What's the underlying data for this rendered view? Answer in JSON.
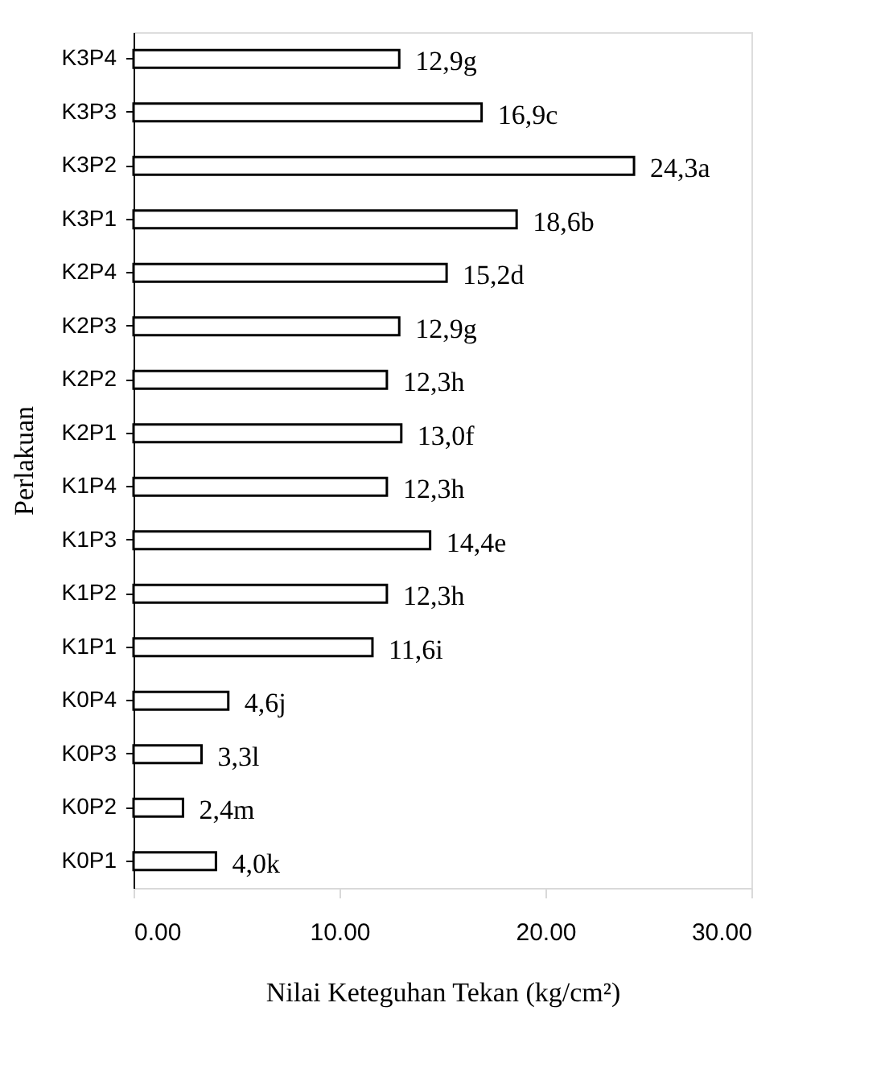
{
  "chart_data": {
    "type": "bar",
    "orientation": "horizontal",
    "xlabel": "Nilai Keteguhan Tekan (kg/cm²)",
    "ylabel": "Perlakuan",
    "categories": [
      "K3P4",
      "K3P3",
      "K3P2",
      "K3P1",
      "K2P4",
      "K2P3",
      "K2P2",
      "K2P1",
      "K1P4",
      "K1P3",
      "K1P2",
      "K1P1",
      "K0P4",
      "K0P3",
      "K0P2",
      "K0P1"
    ],
    "values": [
      12.9,
      16.9,
      24.3,
      18.6,
      15.2,
      12.9,
      12.3,
      13.0,
      12.3,
      14.4,
      12.3,
      11.6,
      4.6,
      3.3,
      2.4,
      4.0
    ],
    "value_labels": [
      "12,9g",
      "16,9c",
      "24,3a",
      "18,6b",
      "15,2d",
      "12,9g",
      "12,3h",
      "13,0f",
      "12,3h",
      "14,4e",
      "12,3h",
      "11,6i",
      "4,6j",
      "3,3l",
      "2,4m",
      "4,0k"
    ],
    "color": "#ffffff",
    "xlim": [
      0,
      30
    ],
    "xticks": [
      {
        "value": 0,
        "label": "0.00"
      },
      {
        "value": 10,
        "label": "10.00"
      },
      {
        "value": 20,
        "label": "20.00"
      },
      {
        "value": 30,
        "label": "30.00"
      }
    ],
    "grid": false
  }
}
